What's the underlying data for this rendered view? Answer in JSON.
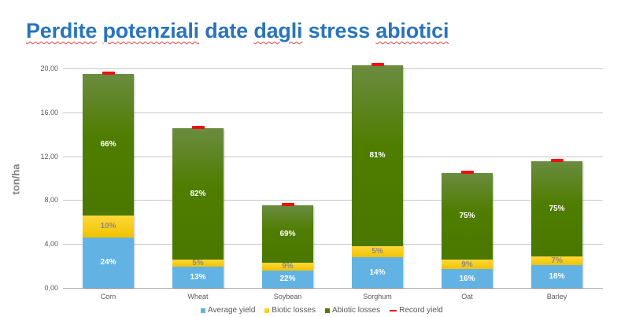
{
  "title": {
    "words": [
      "Perdite",
      "potenziali",
      "date",
      "dagli",
      "stress",
      "abiotici"
    ],
    "spellcheck": [
      true,
      true,
      false,
      true,
      false,
      true
    ]
  },
  "colors": {
    "average_yield": "#62b3e3",
    "biotic_losses": "#ffd21f",
    "abiotic_losses": "#4e7a00",
    "record_yield": "#ee1111",
    "title": "#2a74bb"
  },
  "chart_data": {
    "type": "bar",
    "stacked": true,
    "title": "Perdite potenziali date dagli stress abiotici",
    "xlabel": "",
    "ylabel": "ton/ha",
    "ylim": [
      0,
      20
    ],
    "yticks": [
      "0,00",
      "4,00",
      "8,00",
      "12,00",
      "16,00",
      "20,00"
    ],
    "ytick_values": [
      0,
      4,
      8,
      12,
      16,
      20
    ],
    "grid": true,
    "legend_position": "bottom",
    "categories": [
      "Corn",
      "Wheat",
      "Soybean",
      "Sorghum",
      "Oat",
      "Barley"
    ],
    "series": [
      {
        "name": "Average yield",
        "values": [
          4.6,
          1.9,
          1.6,
          2.8,
          1.7,
          2.1
        ],
        "labels": [
          "24%",
          "13%",
          "22%",
          "14%",
          "16%",
          "18%"
        ]
      },
      {
        "name": "Biotic losses",
        "values": [
          2.0,
          0.7,
          0.7,
          1.0,
          0.9,
          0.8
        ],
        "labels": [
          "10%",
          "5%",
          "9%",
          "5%",
          "9%",
          "7%"
        ]
      },
      {
        "name": "Abiotic losses",
        "values": [
          12.9,
          11.95,
          5.2,
          16.5,
          7.9,
          8.65
        ],
        "labels": [
          "66%",
          "82%",
          "69%",
          "81%",
          "75%",
          "75%"
        ]
      },
      {
        "name": "Record yield",
        "type": "marker",
        "values": [
          19.5,
          14.55,
          7.5,
          20.3,
          10.5,
          11.55
        ]
      }
    ]
  },
  "legend": [
    {
      "label": "Average yield",
      "key": "average_yield",
      "shape": "square"
    },
    {
      "label": "Biotic losses",
      "key": "biotic_losses",
      "shape": "square"
    },
    {
      "label": "Abiotic losses",
      "key": "abiotic_losses",
      "shape": "square"
    },
    {
      "label": "Record yield",
      "key": "record_yield",
      "shape": "line"
    }
  ]
}
